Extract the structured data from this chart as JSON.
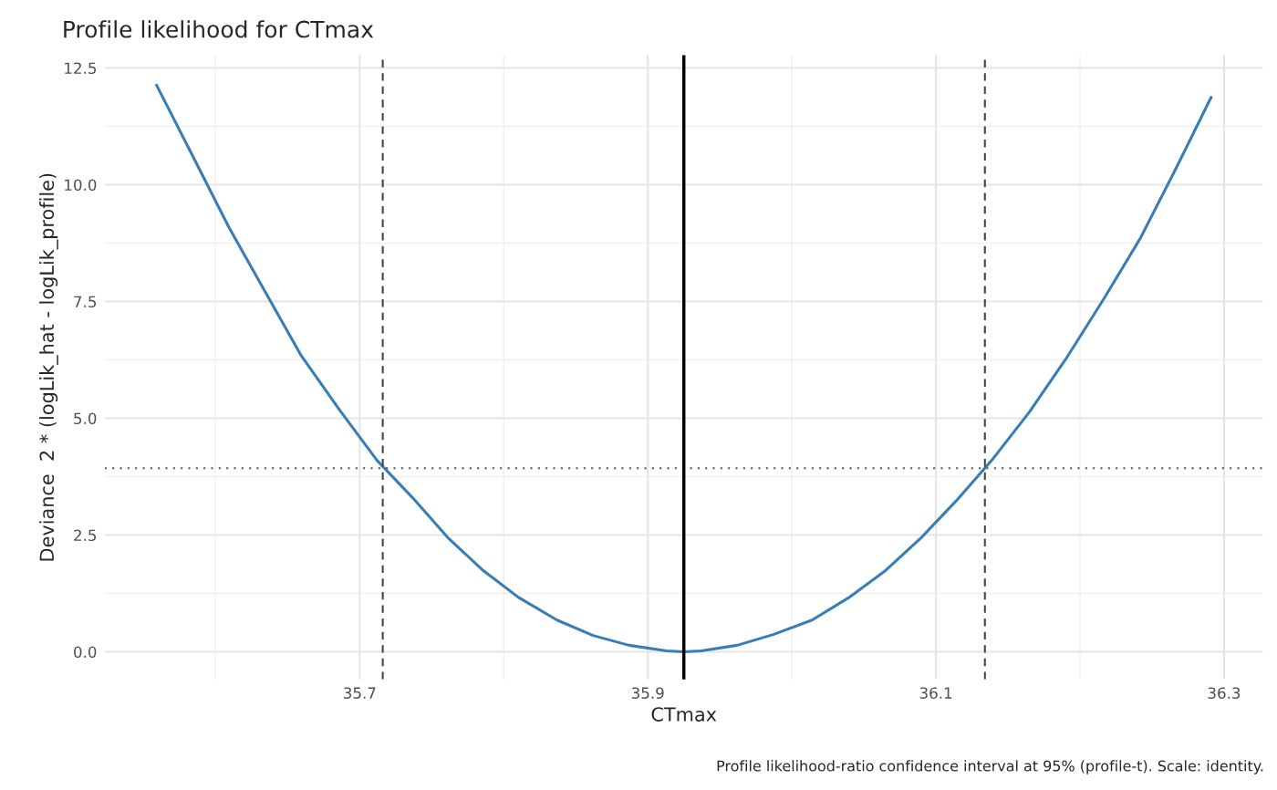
{
  "chart_data": {
    "type": "line",
    "title": "Profile likelihood for CTmax",
    "xlabel": "CTmax",
    "ylabel": "Deviance  2 * (logLik_hat - logLik_profile)",
    "annotations": [
      "Profile likelihood-ratio confidence interval at 95% (profile-t). Scale: identity."
    ],
    "x": [
      35.559,
      35.584,
      35.609,
      35.634,
      35.659,
      35.686,
      35.712,
      35.737,
      35.761,
      35.785,
      35.81,
      35.837,
      35.862,
      35.887,
      35.913,
      35.925,
      35.937,
      35.962,
      35.987,
      36.014,
      36.039,
      36.065,
      36.09,
      36.114,
      36.139,
      36.165,
      36.19,
      36.216,
      36.242,
      36.267,
      36.291
    ],
    "series": [
      {
        "color": "#377eb8",
        "values": [
          12.13,
          10.62,
          9.1,
          7.73,
          6.36,
          5.18,
          4.1,
          3.29,
          2.45,
          1.76,
          1.17,
          0.68,
          0.35,
          0.14,
          0.02,
          0.0,
          0.02,
          0.14,
          0.37,
          0.68,
          1.15,
          1.74,
          2.45,
          3.23,
          4.11,
          5.14,
          6.26,
          7.53,
          8.86,
          10.37,
          11.87
        ]
      }
    ],
    "xlim": [
      35.523,
      36.327
    ],
    "xticks": [
      35.7,
      35.9,
      36.1,
      36.3
    ],
    "ylim": [
      -0.59,
      12.77
    ],
    "yticks": [
      {
        "value": 0,
        "label": "0.0"
      },
      2.5,
      {
        "value": 5,
        "label": "5.0"
      },
      7.5,
      {
        "value": 10,
        "label": "10.0"
      },
      12.5
    ],
    "ref_lines": [
      {
        "axis": "y",
        "value": 3.93,
        "color": "#555555",
        "line_style": "dotted"
      },
      {
        "axis": "x",
        "value": 35.716,
        "color": "#444444",
        "line_style": "dashed"
      },
      {
        "axis": "x",
        "value": 36.134,
        "color": "#444444",
        "line_style": "dashed"
      },
      {
        "axis": "x",
        "value": 35.925,
        "color": "#000000",
        "line_style": "solid"
      }
    ],
    "grid": true,
    "legend": false,
    "marker": "none",
    "line_style": "solid"
  }
}
